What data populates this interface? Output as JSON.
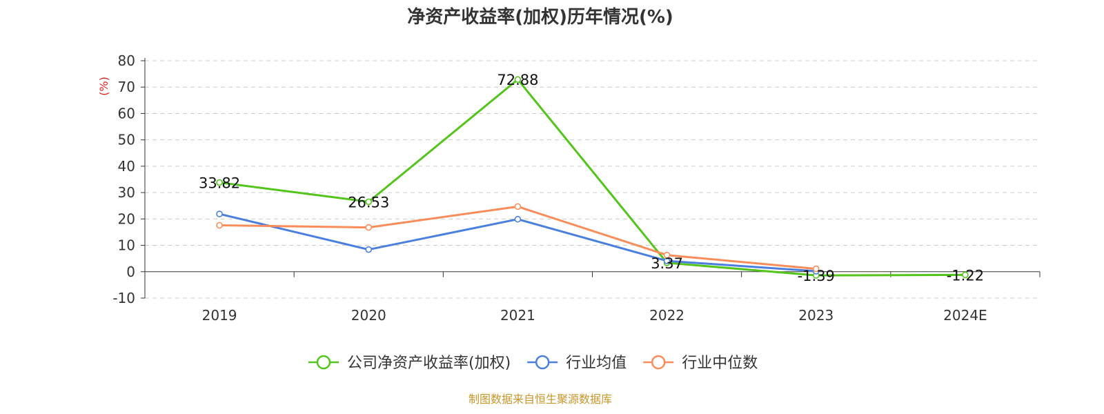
{
  "chart_data": {
    "type": "line",
    "title": "净资产收益率(加权)历年情况(%)",
    "ylabel": "(%)",
    "xlabel": "",
    "categories": [
      "2019",
      "2020",
      "2021",
      "2022",
      "2023",
      "2024E"
    ],
    "ylim": [
      -10,
      80
    ],
    "yticks": [
      -10,
      0,
      10,
      20,
      30,
      40,
      50,
      60,
      70,
      80
    ],
    "grid": true,
    "legend_position": "bottom",
    "series": [
      {
        "name": "公司净资产收益率(加权)",
        "color": "#52c41a",
        "values": [
          33.82,
          26.53,
          72.88,
          3.37,
          -1.39,
          -1.22
        ],
        "labels": [
          "33.82",
          "26.53",
          "72.88",
          "3.37",
          "-1.39",
          "-1.22"
        ]
      },
      {
        "name": "行业均值",
        "color": "#4a7fde",
        "values": [
          21.9,
          8.4,
          19.9,
          4.1,
          0.2,
          null
        ]
      },
      {
        "name": "行业中位数",
        "color": "#fa8c5a",
        "values": [
          17.6,
          16.8,
          24.7,
          6.3,
          1.1,
          null
        ]
      }
    ]
  },
  "source_text": "制图数据来自恒生聚源数据库",
  "colors": {
    "ylabel": "#e02020",
    "source": "#c8962a",
    "grid": "#cccccc",
    "axis": "#333333"
  }
}
